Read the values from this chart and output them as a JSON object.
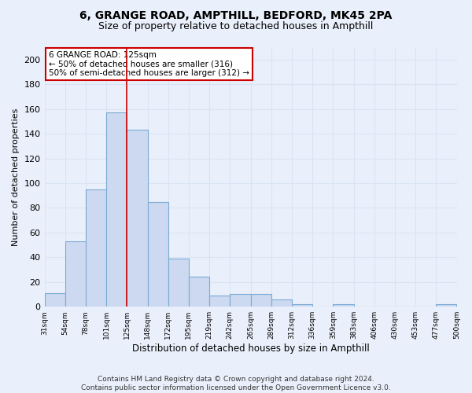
{
  "title1": "6, GRANGE ROAD, AMPTHILL, BEDFORD, MK45 2PA",
  "title2": "Size of property relative to detached houses in Ampthill",
  "xlabel": "Distribution of detached houses by size in Ampthill",
  "ylabel": "Number of detached properties",
  "footer": "Contains HM Land Registry data © Crown copyright and database right 2024.\nContains public sector information licensed under the Open Government Licence v3.0.",
  "bin_labels": [
    "31sqm",
    "54sqm",
    "78sqm",
    "101sqm",
    "125sqm",
    "148sqm",
    "172sqm",
    "195sqm",
    "219sqm",
    "242sqm",
    "265sqm",
    "289sqm",
    "312sqm",
    "336sqm",
    "359sqm",
    "383sqm",
    "406sqm",
    "430sqm",
    "453sqm",
    "477sqm",
    "500sqm"
  ],
  "bar_values": [
    11,
    53,
    95,
    157,
    143,
    85,
    39,
    24,
    9,
    10,
    10,
    6,
    2,
    0,
    2,
    0,
    0,
    0,
    0,
    2
  ],
  "bar_color": "#ccd9f0",
  "bar_edge_color": "#7aaad4",
  "annotation_text": "6 GRANGE ROAD: 125sqm\n← 50% of detached houses are smaller (316)\n50% of semi-detached houses are larger (312) →",
  "annotation_box_color": "#ffffff",
  "annotation_box_edge": "#cc0000",
  "vline_color": "#cc0000",
  "bg_color": "#eaf0fb",
  "grid_color": "#d8e4f4",
  "ylim": [
    0,
    210
  ],
  "yticks": [
    0,
    20,
    40,
    60,
    80,
    100,
    120,
    140,
    160,
    180,
    200
  ]
}
